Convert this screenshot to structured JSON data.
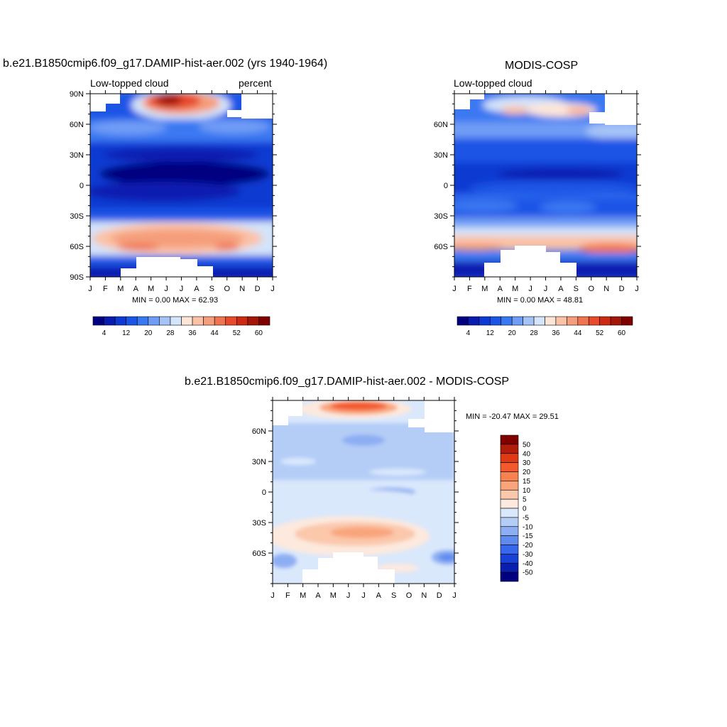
{
  "chart_data": [
    {
      "type": "heatmap",
      "title": "b.e21.B1850cmip6.f09_g17.DAMIP-hist-aer.002 (yrs 1940-1964)",
      "left_label": "Low-topped cloud",
      "right_label": "percent",
      "x_ticks": [
        "J",
        "F",
        "M",
        "A",
        "M",
        "J",
        "J",
        "A",
        "S",
        "O",
        "N",
        "D",
        "J"
      ],
      "y_ticks": [
        "90N",
        "60N",
        "30N",
        "0",
        "30S",
        "60S",
        "90S"
      ],
      "stats": "MIN =   0.00 MAX =  62.93",
      "min": 0.0,
      "max": 62.93,
      "colorbar_labels": [
        "4",
        "12",
        "20",
        "28",
        "36",
        "44",
        "52",
        "60"
      ],
      "levels": [
        4,
        8,
        12,
        16,
        20,
        24,
        28,
        32,
        36,
        40,
        44,
        48,
        52,
        56,
        60
      ],
      "colors": [
        "#000080",
        "#0a1bb0",
        "#0d3ad2",
        "#1b55e6",
        "#3a78f2",
        "#6f9cf5",
        "#a5c3f7",
        "#d4e4fa",
        "#fde5d8",
        "#fbc2a6",
        "#f59e7c",
        "#ef7451",
        "#e84a2b",
        "#cc2a12",
        "#a31608",
        "#800000"
      ]
    },
    {
      "type": "heatmap",
      "title": "MODIS-COSP",
      "left_label": "Low-topped cloud",
      "x_ticks": [
        "J",
        "F",
        "M",
        "A",
        "M",
        "J",
        "J",
        "A",
        "S",
        "O",
        "N",
        "D",
        "J"
      ],
      "y_ticks": [
        "60N",
        "30N",
        "0",
        "30S",
        "60S"
      ],
      "stats": "MIN =   0.00 MAX =  48.81",
      "min": 0.0,
      "max": 48.81,
      "colorbar_labels": [
        "4",
        "12",
        "20",
        "28",
        "36",
        "44",
        "52",
        "60"
      ]
    },
    {
      "type": "heatmap",
      "title": "b.e21.B1850cmip6.f09_g17.DAMIP-hist-aer.002 - MODIS-COSP",
      "x_ticks": [
        "J",
        "F",
        "M",
        "A",
        "M",
        "J",
        "J",
        "A",
        "S",
        "O",
        "N",
        "D",
        "J"
      ],
      "y_ticks": [
        "60N",
        "30N",
        "0",
        "30S",
        "60S"
      ],
      "stats": "MIN = -20.47 MAX =  29.51",
      "min": -20.47,
      "max": 29.51,
      "colorbar_labels": [
        "50",
        "40",
        "30",
        "20",
        "15",
        "10",
        "5",
        "0",
        "-5",
        "-10",
        "-15",
        "-20",
        "-30",
        "-40",
        "-50"
      ],
      "colors": [
        "#800000",
        "#b11d0b",
        "#e03a14",
        "#f25a2e",
        "#f7814f",
        "#f9a57c",
        "#fbc8ac",
        "#fde9de",
        "#dae8fb",
        "#b4cdf7",
        "#8daef3",
        "#5f8bef",
        "#3767ea",
        "#1841d8",
        "#0a1fae",
        "#000080"
      ]
    }
  ]
}
